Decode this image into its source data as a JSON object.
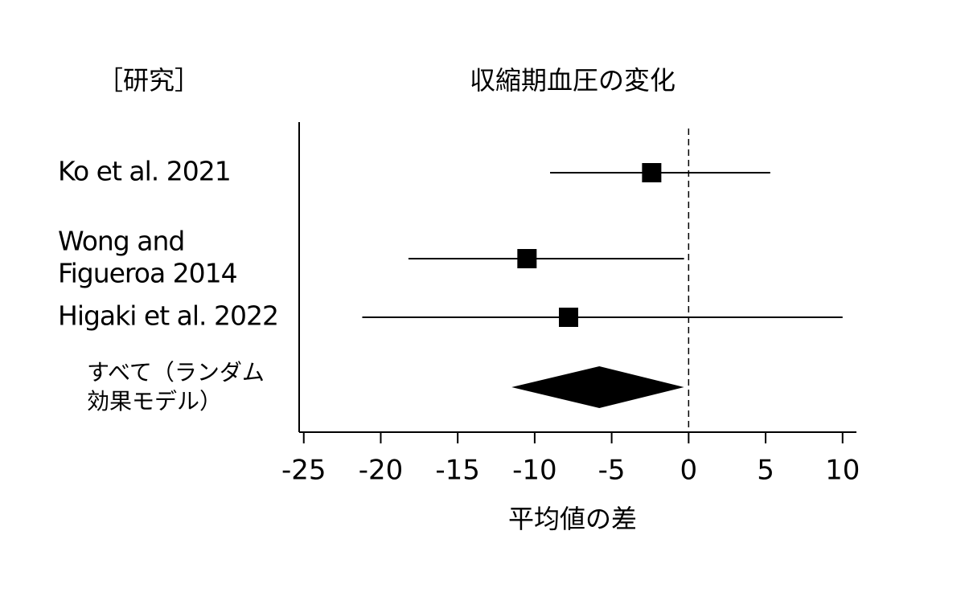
{
  "chart_data": {
    "type": "forest",
    "title": "収縮期血圧の変化",
    "column_header": "［研究］",
    "x_label": "平均値の差",
    "studies": [
      {
        "label": [
          "Ko et al. 2021"
        ],
        "mean": -2.4,
        "lower": -9.0,
        "upper": 5.3
      },
      {
        "label": [
          "Wong and",
          "Figueroa 2014"
        ],
        "mean": -10.5,
        "lower": -18.2,
        "upper": -0.3
      },
      {
        "label": [
          "Higaki et al. 2022"
        ],
        "mean": -7.8,
        "lower": -21.2,
        "upper": 10.0
      }
    ],
    "pooled": {
      "label": [
        "すべて（ランダム",
        "効果モデル）"
      ],
      "mean": -5.8,
      "lower": -11.5,
      "upper": -0.3
    },
    "reference_line": 0,
    "xlim": [
      -25.3,
      10.9
    ],
    "xticks": [
      -25,
      -20,
      -15,
      -10,
      -5,
      0,
      5,
      10
    ],
    "color": "#000000"
  }
}
